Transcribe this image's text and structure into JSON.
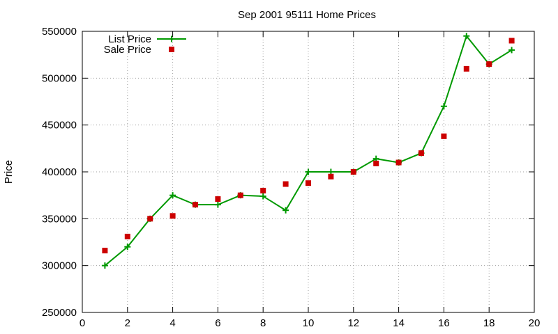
{
  "chart_data": {
    "type": "line",
    "title": "Sep 2001 95111 Home Prices",
    "xlabel": "",
    "ylabel": "Price",
    "xlim": [
      0,
      20
    ],
    "ylim": [
      250000,
      550000
    ],
    "xticks": [
      0,
      2,
      4,
      6,
      8,
      10,
      12,
      14,
      16,
      18,
      20
    ],
    "yticks": [
      250000,
      300000,
      350000,
      400000,
      450000,
      500000,
      550000
    ],
    "grid": true,
    "legend_position": "top-left",
    "series": [
      {
        "name": "List Price",
        "style": "line+plus",
        "color": "#009900",
        "x": [
          1,
          2,
          3,
          4,
          5,
          6,
          7,
          8,
          9,
          10,
          11,
          12,
          13,
          14,
          15,
          16,
          17,
          18,
          19
        ],
        "values": [
          300000,
          320000,
          350000,
          375000,
          365000,
          365000,
          375000,
          374000,
          359000,
          400000,
          400000,
          400000,
          414000,
          410000,
          420000,
          470000,
          545000,
          515000,
          530000
        ]
      },
      {
        "name": "Sale Price",
        "style": "square",
        "color": "#cc0000",
        "x": [
          1,
          2,
          3,
          4,
          5,
          6,
          7,
          8,
          9,
          10,
          11,
          12,
          13,
          14,
          15,
          16,
          17,
          18,
          19
        ],
        "values": [
          316000,
          331000,
          350000,
          353000,
          365000,
          371000,
          375000,
          380000,
          387000,
          388000,
          395000,
          400000,
          409000,
          410000,
          420000,
          438000,
          510000,
          515000,
          540000
        ]
      }
    ]
  }
}
